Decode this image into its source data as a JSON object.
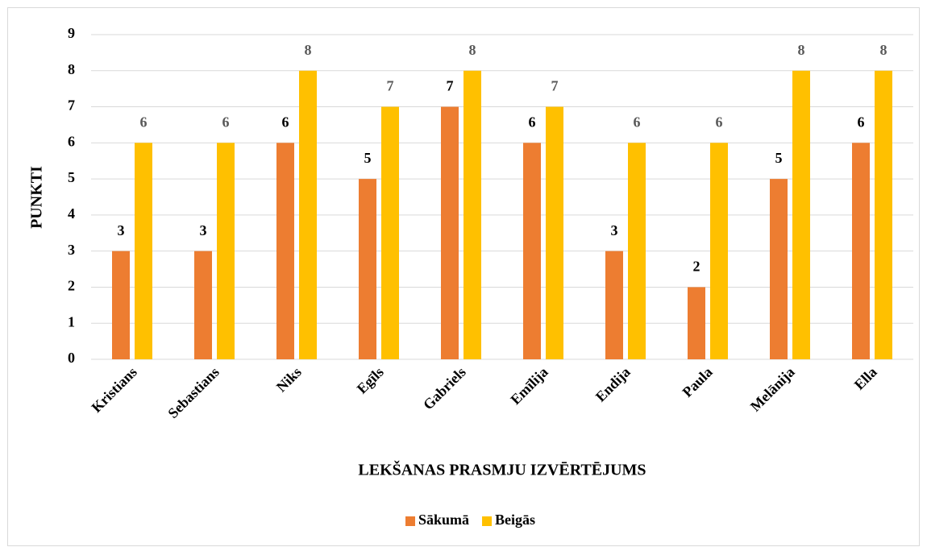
{
  "chart_data": {
    "type": "bar",
    "y_label": "PUNKTI",
    "x_label": "LEKŠANAS PRASMJU IZVĒRTĒJUMS",
    "categories": [
      "Kristians",
      "Sebastians",
      "Niks",
      "Egīls",
      "Gabriels",
      "Emīlija",
      "Endija",
      "Paula",
      "Melānija",
      "Ella"
    ],
    "series": [
      {
        "name": "Sākumā",
        "color": "#ED7D31",
        "label_color": "#000000",
        "values": [
          3,
          3,
          6,
          5,
          7,
          6,
          3,
          2,
          5,
          6
        ]
      },
      {
        "name": "Beigās",
        "color": "#FFC000",
        "label_color": "#595959",
        "values": [
          6,
          6,
          8,
          7,
          8,
          7,
          6,
          6,
          8,
          8
        ]
      }
    ],
    "ylim": [
      0,
      9
    ],
    "yticks": [
      0,
      1,
      2,
      3,
      4,
      5,
      6,
      7,
      8,
      9
    ],
    "grid": true,
    "legend": "bottom"
  }
}
